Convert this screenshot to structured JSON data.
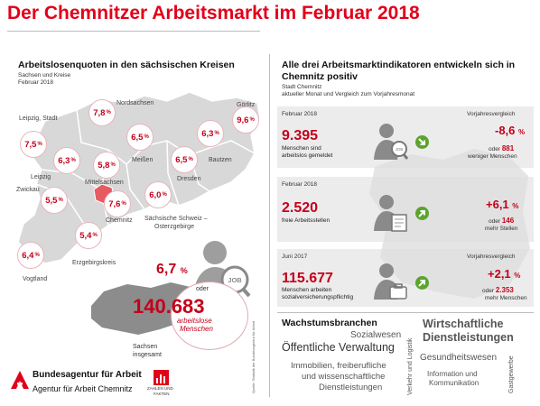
{
  "title": "Der Chemnitzer Arbeitsmarkt im Februar 2018",
  "left": {
    "heading": "Arbeitslosenquoten in den sächsischen Kreisen",
    "sub1": "Sachsen und Kreise",
    "sub2": "Februar 2018",
    "regions": {
      "leipzig_stadt": "Leipzig, Stadt",
      "nordsachsen": "Nordsachsen",
      "goerlitz": "Görlitz",
      "leipzig": "Leipzig",
      "mittelsachsen": "Mittelsachsen",
      "meissen": "Meißen",
      "bautzen": "Bautzen",
      "dresden": "Dresden",
      "zwickau": "Zwickau",
      "chemnitz": "Chemnitz",
      "saechsische_schweiz": "Sächsische Schweiz –",
      "osterzgebirge": "Osterzgebirge",
      "erzgebirgskreis": "Erzgebirgskreis",
      "vogtland": "Vogtland"
    },
    "quotes": {
      "leipzig_stadt": "7,5",
      "nordsachsen": "7,8",
      "goerlitz": "9,6",
      "leipzig": "6,3",
      "mittelsachsen": "5,8",
      "meissen": "6,5",
      "bautzen": "6,3",
      "dresden": "6,5",
      "zwickau": "5,5",
      "chemnitz": "7,6",
      "saechsische_schweiz": "6,0",
      "erzgebirgskreis": "5,4",
      "vogtland": "6,4"
    },
    "pct": "%",
    "saxony_rate": "6,7",
    "oder": "oder",
    "saxony_count": "140.683",
    "arbeitslose": "arbeitslose",
    "menschen": "Menschen",
    "sachsen": "Sachsen",
    "insgesamt": "insgesamt",
    "job": "JOB"
  },
  "right": {
    "heading1": "Alle drei Arbeitsmarktindikatoren entwickeln sich in",
    "heading2": "Chemnitz positiv",
    "sub1": "Stadt Chemnitz",
    "sub2": "aktueller Monat und Vergleich zum Vorjahresmonat",
    "vergleich": "Vorjahresvergleich",
    "indicators": [
      {
        "period": "Februar 2018",
        "value": "9.395",
        "label1": "Menschen sind",
        "label2": "arbeitslos gemeldet",
        "pct": "-8,6",
        "pct_unit": "%",
        "oder": "oder",
        "count": "881",
        "count_label": "weniger Menschen",
        "icon": "job-seeker-icon"
      },
      {
        "period": "Februar 2018",
        "value": "2.520",
        "label1": "freie Arbeitsstellen",
        "label2": "",
        "pct": "+6,1",
        "pct_unit": "%",
        "oder": "oder",
        "count": "146",
        "count_label": "mehr Stellen",
        "icon": "vacancy-icon"
      },
      {
        "period": "Juni 2017",
        "value": "115.677",
        "label1": "Menschen arbeiten",
        "label2": "sozialversicherungspflichtig",
        "pct": "+2,1",
        "pct_unit": "%",
        "oder": "oder",
        "count": "2.353",
        "count_label": "mehr Menschen",
        "icon": "employee-icon"
      }
    ],
    "growth_heading": "Wachstumsbranchen",
    "branches": {
      "sozialwesen": "Sozialwesen",
      "oeffentliche": "Öffentliche Verwaltung",
      "immobilien1": "Immobilien, freiberufliche",
      "immobilien2": "und wissenschaftliche",
      "immobilien3": "Dienstleistungen",
      "verkehr": "Verkehr und Logistik",
      "wirtschaft1": "Wirtschaftliche",
      "wirtschaft2": "Dienstleistungen",
      "gesundheit": "Gesundheitswesen",
      "info1": "Information und",
      "info2": "Kommunikation",
      "gastgewerbe": "Gastgewerbe"
    },
    "source": "Quelle: Statistik der Bundesagentur für Arbeit"
  },
  "footer": {
    "ba1": "Bundesagentur für Arbeit",
    "ba2": "Agentur für Arbeit Chemnitz",
    "zahlen1": "ZAHLEN UND",
    "zahlen2": "FAKTEN"
  },
  "colors": {
    "accent": "#e2001a",
    "dark_red": "#c4001a",
    "green": "#5ca42e",
    "grey_band": "#ececec"
  }
}
